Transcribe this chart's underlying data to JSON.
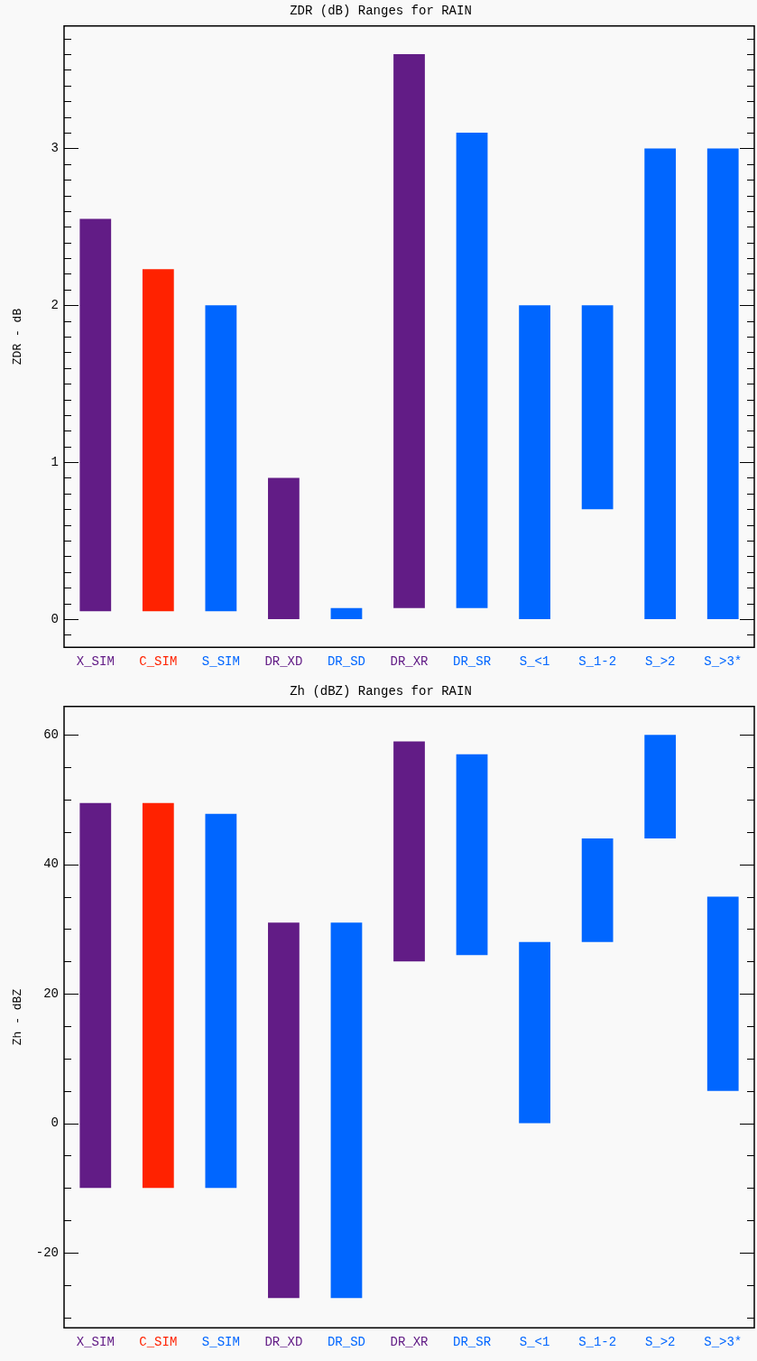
{
  "chart_data": [
    {
      "type": "bar",
      "title": "ZDR (dB) Ranges for RAIN",
      "ylabel": "ZDR - dB",
      "categories": [
        "X_SIM",
        "C_SIM",
        "S_SIM",
        "DR_XD",
        "DR_SD",
        "DR_XR",
        "DR_SR",
        "S_<1",
        "S_1-2",
        "S_>2",
        "S_>3*"
      ],
      "base": [
        0.05,
        0.05,
        0.05,
        0,
        0,
        0.07,
        0.07,
        0,
        0.7,
        0,
        0
      ],
      "values": [
        2.5,
        2.18,
        1.95,
        0.9,
        0.07,
        3.53,
        3.03,
        2,
        1.3,
        3,
        3
      ],
      "colors": [
        "#621c86",
        "#ff2200",
        "#0066ff",
        "#621c86",
        "#0066ff",
        "#621c86",
        "#0066ff",
        "#0066ff",
        "#0066ff",
        "#0066ff",
        "#0066ff"
      ],
      "ylim": [
        -0.18,
        3.78
      ],
      "yticks": [
        {
          "value": -0.1,
          "label": null
        },
        0,
        {
          "value": 0.1,
          "label": null
        },
        {
          "value": 0.2,
          "label": null
        },
        {
          "value": 0.3,
          "label": null
        },
        {
          "value": 0.4,
          "label": null
        },
        {
          "value": 0.5,
          "label": null
        },
        {
          "value": 0.6,
          "label": null
        },
        {
          "value": 0.7,
          "label": null
        },
        {
          "value": 0.8,
          "label": null
        },
        {
          "value": 0.9,
          "label": null
        },
        1,
        {
          "value": 1.1,
          "label": null
        },
        {
          "value": 1.2,
          "label": null
        },
        {
          "value": 1.3,
          "label": null
        },
        {
          "value": 1.4,
          "label": null
        },
        {
          "value": 1.5,
          "label": null
        },
        {
          "value": 1.6,
          "label": null
        },
        {
          "value": 1.7,
          "label": null
        },
        {
          "value": 1.8,
          "label": null
        },
        {
          "value": 1.9,
          "label": null
        },
        2,
        {
          "value": 2.1,
          "label": null
        },
        {
          "value": 2.2,
          "label": null
        },
        {
          "value": 2.3,
          "label": null
        },
        {
          "value": 2.4,
          "label": null
        },
        {
          "value": 2.5,
          "label": null
        },
        {
          "value": 2.6,
          "label": null
        },
        {
          "value": 2.7,
          "label": null
        },
        {
          "value": 2.8,
          "label": null
        },
        {
          "value": 2.9,
          "label": null
        },
        3,
        {
          "value": 3.1,
          "label": null
        },
        {
          "value": 3.2,
          "label": null
        },
        {
          "value": 3.3,
          "label": null
        },
        {
          "value": 3.4,
          "label": null
        },
        {
          "value": 3.5,
          "label": null
        },
        {
          "value": 3.6,
          "label": null
        },
        {
          "value": 3.7,
          "label": null
        }
      ],
      "grid": false,
      "legend": false
    },
    {
      "type": "bar",
      "title": "Zh (dBZ) Ranges for RAIN",
      "ylabel": "Zh - dBZ",
      "categories": [
        "X_SIM",
        "C_SIM",
        "S_SIM",
        "DR_XD",
        "DR_SD",
        "DR_XR",
        "DR_SR",
        "S_<1",
        "S_1-2",
        "S_>2",
        "S_>3*"
      ],
      "base": [
        -10,
        -10,
        -10,
        -27,
        -27,
        25,
        26,
        0,
        28,
        44,
        5
      ],
      "values": [
        59.5,
        59.5,
        57.8,
        58,
        58,
        34,
        31,
        28,
        16,
        16,
        30
      ],
      "colors": [
        "#621c86",
        "#ff2200",
        "#0066ff",
        "#621c86",
        "#0066ff",
        "#621c86",
        "#0066ff",
        "#0066ff",
        "#0066ff",
        "#0066ff",
        "#0066ff"
      ],
      "ylim": [
        -31.6,
        64.4
      ],
      "yticks": [
        {
          "value": -30,
          "label": null
        },
        {
          "value": -25,
          "label": null
        },
        -20,
        {
          "value": -15,
          "label": null
        },
        {
          "value": -10,
          "label": null
        },
        {
          "value": -5,
          "label": null
        },
        0,
        {
          "value": 5,
          "label": null
        },
        {
          "value": 10,
          "label": null
        },
        {
          "value": 15,
          "label": null
        },
        20,
        {
          "value": 25,
          "label": null
        },
        {
          "value": 30,
          "label": null
        },
        {
          "value": 35,
          "label": null
        },
        40,
        {
          "value": 45,
          "label": null
        },
        {
          "value": 50,
          "label": null
        },
        {
          "value": 55,
          "label": null
        },
        60
      ],
      "grid": false,
      "legend": false
    }
  ]
}
